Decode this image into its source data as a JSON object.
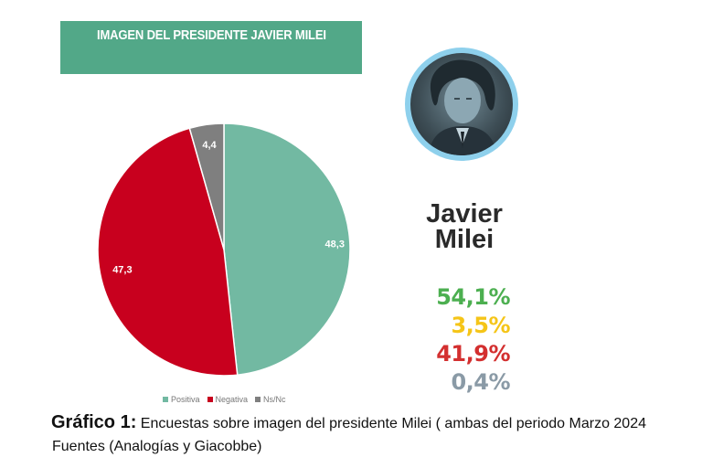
{
  "chart_data": {
    "type": "pie",
    "title": "IMAGEN DEL PRESIDENTE JAVIER MILEI",
    "categories": [
      "Positiva",
      "Negativa",
      "Ns/Nc"
    ],
    "values": [
      48.3,
      47.3,
      4.4
    ],
    "value_labels": [
      "48,3",
      "47,3",
      "4,4"
    ],
    "colors": [
      "#72b9a2",
      "#c8001e",
      "#7f7f7f"
    ],
    "start": "12 o'clock, clockwise",
    "legend": {
      "position": "bottom",
      "entries": [
        {
          "label": "Positiva",
          "color": "#72b9a2"
        },
        {
          "label": "Negativa",
          "color": "#c8001e"
        },
        {
          "label": "Ns/Nc",
          "color": "#7f7f7f"
        }
      ]
    }
  },
  "banner": {
    "title": "IMAGEN DEL PRESIDENTE JAVIER MILEI",
    "color": "#52a888"
  },
  "profile": {
    "photo_icon": "portrait-photo",
    "ring_color": "#8ed0ec",
    "name_line1": "Javier",
    "name_line2": "Milei"
  },
  "stats": [
    {
      "value": "54,1%",
      "color": "#4caf50"
    },
    {
      "value": "3,5%",
      "color": "#f5c518"
    },
    {
      "value": "41,9%",
      "color": "#d32f2f"
    },
    {
      "value": "0,4%",
      "color": "#8a9aa6"
    }
  ],
  "caption": {
    "lead": "Gráfico 1:",
    "text": " Encuestas sobre imagen del presidente Milei ( ambas del periodo Marzo 2024",
    "line2": "Fuentes (Analogías y Giacobbe)"
  }
}
